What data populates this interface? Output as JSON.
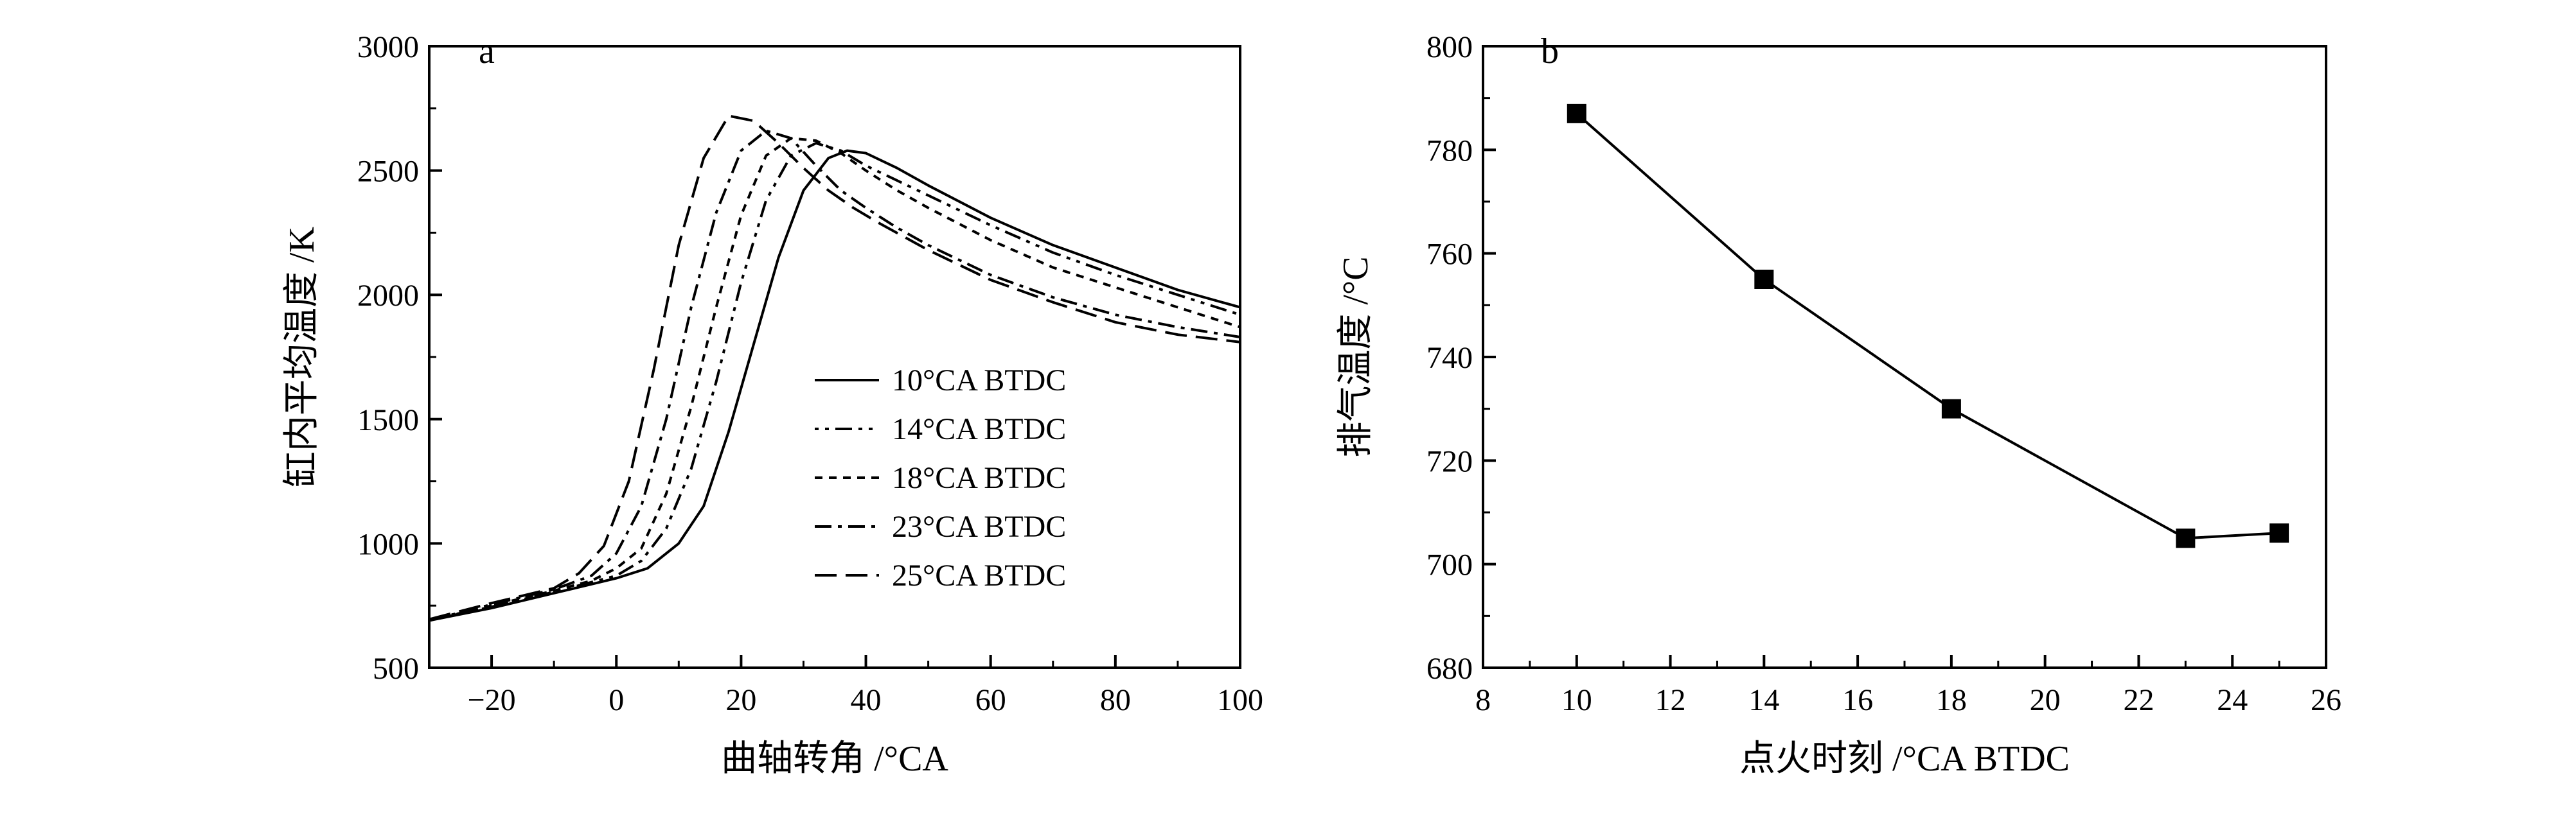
{
  "chart_data": [
    {
      "type": "line",
      "panel": "a",
      "xlabel": "曲轴转角 /°CA",
      "ylabel": "缸内平均温度 /K",
      "xlim": [
        -30,
        100
      ],
      "ylim": [
        500,
        3000
      ],
      "xticks": [
        -20,
        0,
        20,
        40,
        60,
        80,
        100
      ],
      "yticks": [
        500,
        1000,
        1500,
        2000,
        2500,
        3000
      ],
      "legend": "center-right",
      "series": [
        {
          "name": "10°CA BTDC",
          "dash": "solid",
          "x": [
            -30,
            -20,
            -10,
            0,
            5,
            10,
            14,
            18,
            22,
            26,
            30,
            34,
            37,
            40,
            45,
            50,
            60,
            70,
            80,
            90,
            100
          ],
          "y": [
            690,
            740,
            800,
            860,
            900,
            1000,
            1150,
            1450,
            1800,
            2150,
            2420,
            2550,
            2580,
            2570,
            2510,
            2440,
            2310,
            2200,
            2110,
            2020,
            1950
          ]
        },
        {
          "name": "14°CA BTDC",
          "dash": "dot-dot-dash",
          "x": [
            -30,
            -20,
            -10,
            0,
            4,
            8,
            12,
            16,
            20,
            24,
            28,
            32,
            36,
            40,
            45,
            50,
            60,
            70,
            80,
            90,
            100
          ],
          "y": [
            690,
            745,
            805,
            870,
            930,
            1060,
            1300,
            1650,
            2050,
            2380,
            2560,
            2610,
            2580,
            2520,
            2460,
            2400,
            2280,
            2170,
            2080,
            2000,
            1920
          ]
        },
        {
          "name": "18°CA BTDC",
          "dash": "dash",
          "x": [
            -30,
            -20,
            -10,
            -4,
            0,
            4,
            8,
            12,
            16,
            20,
            24,
            28,
            32,
            36,
            40,
            45,
            50,
            60,
            70,
            80,
            90,
            100
          ],
          "y": [
            690,
            750,
            810,
            850,
            900,
            980,
            1200,
            1550,
            1950,
            2320,
            2560,
            2630,
            2620,
            2570,
            2500,
            2420,
            2350,
            2220,
            2110,
            2030,
            1950,
            1870
          ]
        },
        {
          "name": "23°CA BTDC",
          "dash": "dash-dot",
          "x": [
            -30,
            -20,
            -10,
            -4,
            0,
            4,
            8,
            12,
            16,
            20,
            24,
            28,
            32,
            36,
            40,
            45,
            50,
            60,
            70,
            80,
            90,
            100
          ],
          "y": [
            690,
            755,
            815,
            870,
            960,
            1150,
            1500,
            1950,
            2330,
            2580,
            2660,
            2630,
            2520,
            2420,
            2350,
            2270,
            2200,
            2080,
            1990,
            1920,
            1870,
            1830
          ]
        },
        {
          "name": "25°CA BTDC",
          "dash": "long-dash",
          "x": [
            -30,
            -20,
            -10,
            -6,
            -2,
            2,
            6,
            10,
            14,
            18,
            22,
            26,
            30,
            34,
            38,
            42,
            50,
            60,
            70,
            80,
            90,
            100
          ],
          "y": [
            695,
            760,
            820,
            880,
            990,
            1250,
            1700,
            2200,
            2550,
            2720,
            2700,
            2610,
            2510,
            2420,
            2350,
            2290,
            2180,
            2060,
            1970,
            1890,
            1840,
            1810
          ]
        }
      ]
    },
    {
      "type": "line",
      "panel": "b",
      "xlabel": "点火时刻 /°CA BTDC",
      "ylabel": "排气温度 /°C",
      "xlim": [
        8,
        26
      ],
      "ylim": [
        680,
        800
      ],
      "xticks": [
        8,
        10,
        12,
        14,
        16,
        18,
        20,
        22,
        24,
        26
      ],
      "yticks": [
        680,
        700,
        720,
        740,
        760,
        780,
        800
      ],
      "marker": "square",
      "series": [
        {
          "x": [
            10,
            14,
            18,
            23,
            25
          ],
          "y": [
            787,
            755,
            730,
            705,
            706
          ]
        }
      ]
    }
  ]
}
